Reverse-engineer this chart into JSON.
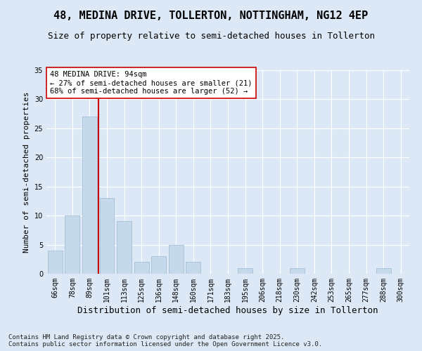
{
  "title": "48, MEDINA DRIVE, TOLLERTON, NOTTINGHAM, NG12 4EP",
  "subtitle": "Size of property relative to semi-detached houses in Tollerton",
  "xlabel": "Distribution of semi-detached houses by size in Tollerton",
  "ylabel": "Number of semi-detached properties",
  "categories": [
    "66sqm",
    "78sqm",
    "89sqm",
    "101sqm",
    "113sqm",
    "125sqm",
    "136sqm",
    "148sqm",
    "160sqm",
    "171sqm",
    "183sqm",
    "195sqm",
    "206sqm",
    "218sqm",
    "230sqm",
    "242sqm",
    "253sqm",
    "265sqm",
    "277sqm",
    "288sqm",
    "300sqm"
  ],
  "values": [
    4,
    10,
    27,
    13,
    9,
    2,
    3,
    5,
    2,
    0,
    0,
    1,
    0,
    0,
    1,
    0,
    0,
    0,
    0,
    1,
    0
  ],
  "bar_color": "#c5d9ea",
  "bar_edgecolor": "#9ab8d0",
  "vline_color": "#cc0000",
  "annotation_text": "48 MEDINA DRIVE: 94sqm\n← 27% of semi-detached houses are smaller (21)\n68% of semi-detached houses are larger (52) →",
  "annotation_box_facecolor": "#ffffff",
  "annotation_box_edgecolor": "#cc0000",
  "ylim": [
    0,
    35
  ],
  "yticks": [
    0,
    5,
    10,
    15,
    20,
    25,
    30,
    35
  ],
  "background_color": "#dce8f5",
  "plot_background_color": "#dce8f5",
  "grid_color": "#ffffff",
  "title_fontsize": 11,
  "subtitle_fontsize": 9,
  "xlabel_fontsize": 9,
  "ylabel_fontsize": 8,
  "tick_fontsize": 7,
  "annotation_fontsize": 7.5,
  "footer_fontsize": 6.5,
  "footer_line1": "Contains HM Land Registry data © Crown copyright and database right 2025.",
  "footer_line2": "Contains public sector information licensed under the Open Government Licence v3.0.",
  "vline_x": 2.5
}
